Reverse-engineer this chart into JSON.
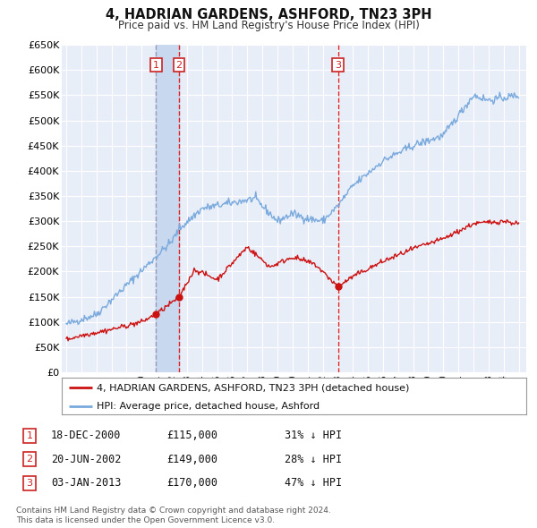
{
  "title": "4, HADRIAN GARDENS, ASHFORD, TN23 3PH",
  "subtitle": "Price paid vs. HM Land Registry's House Price Index (HPI)",
  "ylim": [
    0,
    650000
  ],
  "yticks": [
    0,
    50000,
    100000,
    150000,
    200000,
    250000,
    300000,
    350000,
    400000,
    450000,
    500000,
    550000,
    600000,
    650000
  ],
  "ytick_labels": [
    "£0",
    "£50K",
    "£100K",
    "£150K",
    "£200K",
    "£250K",
    "£300K",
    "£350K",
    "£400K",
    "£450K",
    "£500K",
    "£550K",
    "£600K",
    "£650K"
  ],
  "xlim_start": 1994.7,
  "xlim_end": 2025.5,
  "xticks": [
    1995,
    1996,
    1997,
    1998,
    1999,
    2000,
    2001,
    2002,
    2003,
    2004,
    2005,
    2006,
    2007,
    2008,
    2009,
    2010,
    2011,
    2012,
    2013,
    2014,
    2015,
    2016,
    2017,
    2018,
    2019,
    2020,
    2021,
    2022,
    2023,
    2024,
    2025
  ],
  "hpi_color": "#7aaadd",
  "price_color": "#cc1111",
  "background_color": "#e8eef8",
  "grid_color": "#ffffff",
  "t1_date": 2000.96,
  "t1_price": 115000,
  "t2_date": 2002.47,
  "t2_price": 149000,
  "t3_date": 2013.01,
  "t3_price": 170000,
  "vline1_color": "#9999bb",
  "vline23_color": "#dd2222",
  "span_color": "#c8d8ee",
  "legend_line1": "4, HADRIAN GARDENS, ASHFORD, TN23 3PH (detached house)",
  "legend_line2": "HPI: Average price, detached house, Ashford",
  "table_entries": [
    {
      "num": "1",
      "date": "18-DEC-2000",
      "price": "£115,000",
      "pct": "31% ↓ HPI"
    },
    {
      "num": "2",
      "date": "20-JUN-2002",
      "price": "£149,000",
      "pct": "28% ↓ HPI"
    },
    {
      "num": "3",
      "date": "03-JAN-2013",
      "price": "£170,000",
      "pct": "47% ↓ HPI"
    }
  ],
  "footnote1": "Contains HM Land Registry data © Crown copyright and database right 2024.",
  "footnote2": "This data is licensed under the Open Government Licence v3.0."
}
